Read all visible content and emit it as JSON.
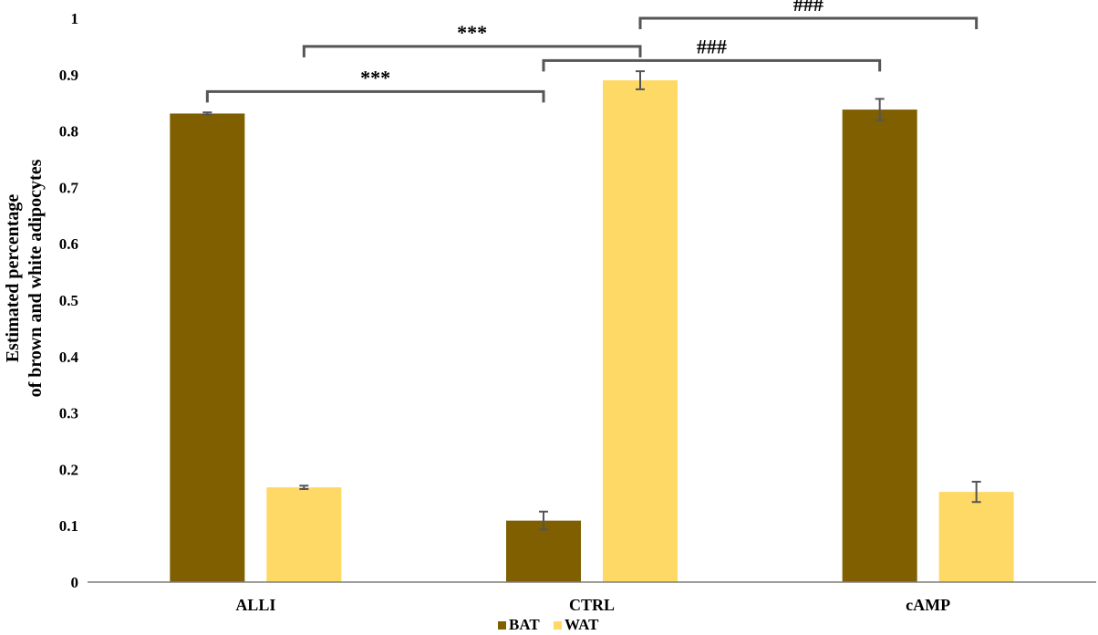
{
  "chart_data": {
    "type": "bar",
    "categories": [
      "ALLI",
      "CTRL",
      "cAMP"
    ],
    "series": [
      {
        "name": "BAT",
        "color": "#7f5f00",
        "values": [
          0.831,
          0.109,
          0.838
        ],
        "errors": [
          0.002,
          0.016,
          0.019
        ]
      },
      {
        "name": "WAT",
        "color": "#ffd966",
        "values": [
          0.168,
          0.89,
          0.16
        ],
        "errors": [
          0.003,
          0.016,
          0.018
        ]
      }
    ],
    "ylabel": [
      "Estimated percentage",
      "of brown and white adipocytes"
    ],
    "xlabel": "",
    "ylim": [
      0,
      1
    ],
    "yticks": [
      "0",
      "0.1",
      "0.2",
      "0.3",
      "0.4",
      "0.5",
      "0.6",
      "0.7",
      "0.8",
      "0.9",
      "1"
    ],
    "grid": false,
    "legend_position": "bottom",
    "annotations": [
      {
        "label": "***",
        "from": [
          0,
          0
        ],
        "to": [
          1,
          0
        ],
        "level": 0.87
      },
      {
        "label": "***",
        "from": [
          0,
          1
        ],
        "to": [
          1,
          1
        ],
        "level": 0.95
      },
      {
        "label": "###",
        "from": [
          1,
          0
        ],
        "to": [
          2,
          0
        ],
        "level": 0.925
      },
      {
        "label": "###",
        "from": [
          1,
          1
        ],
        "to": [
          2,
          1
        ],
        "level": 1.0
      }
    ]
  }
}
